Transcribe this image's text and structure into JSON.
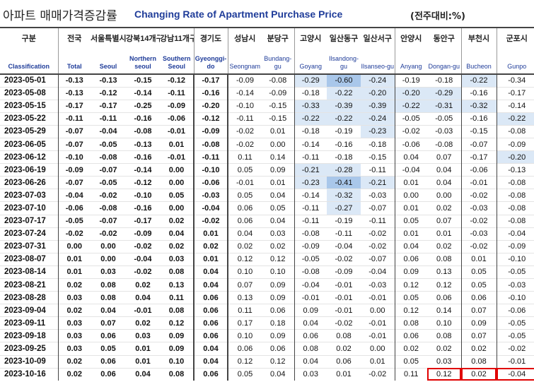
{
  "title": {
    "ko": "아파트 매매가격증감률",
    "en": "Changing Rate of Apartment Purchase Price",
    "unit": "(전주대비:%)"
  },
  "colors": {
    "title_en": "#1f3c99",
    "highlight_light": "#dbe8f6",
    "highlight_dark": "#a9c7ea",
    "box": "#e00000"
  },
  "chart_data": {
    "type": "table",
    "columns": [
      {
        "ko": "구분",
        "en": "Classification"
      },
      {
        "ko": "전국",
        "en": "Total"
      },
      {
        "ko": "서울특별시",
        "en": "Seoul"
      },
      {
        "ko": "강북14개구",
        "en": "Northern seoul"
      },
      {
        "ko": "강남11개구",
        "en": "Southern Seoul"
      },
      {
        "ko": "경기도",
        "en": "Gyeonggi-do"
      },
      {
        "ko": "성남시",
        "en": "Seongnam"
      },
      {
        "ko": "분당구",
        "en": "Bundang-gu"
      },
      {
        "ko": "고양시",
        "en": "Goyang"
      },
      {
        "ko": "일산동구",
        "en": "Ilsandong-gu"
      },
      {
        "ko": "일산서구",
        "en": "Ilsanseo-gu"
      },
      {
        "ko": "안양시",
        "en": "Anyang"
      },
      {
        "ko": "동안구",
        "en": "Dongan-gu"
      },
      {
        "ko": "부천시",
        "en": "Bucheon"
      },
      {
        "ko": "군포시",
        "en": "Gunpo"
      }
    ],
    "rows": [
      [
        "2023-05-01",
        "-0.13",
        "-0.13",
        "-0.15",
        "-0.12",
        "-0.17",
        "-0.09",
        "-0.08",
        "-0.29",
        "-0.60",
        "-0.24",
        "-0.19",
        "-0.18",
        "-0.22",
        "-0.34"
      ],
      [
        "2023-05-08",
        "-0.13",
        "-0.12",
        "-0.14",
        "-0.11",
        "-0.16",
        "-0.14",
        "-0.09",
        "-0.18",
        "-0.22",
        "-0.20",
        "-0.20",
        "-0.29",
        "-0.16",
        "-0.17"
      ],
      [
        "2023-05-15",
        "-0.17",
        "-0.17",
        "-0.25",
        "-0.09",
        "-0.20",
        "-0.10",
        "-0.15",
        "-0.33",
        "-0.39",
        "-0.39",
        "-0.22",
        "-0.31",
        "-0.32",
        "-0.14"
      ],
      [
        "2023-05-22",
        "-0.11",
        "-0.11",
        "-0.16",
        "-0.06",
        "-0.12",
        "-0.11",
        "-0.15",
        "-0.22",
        "-0.22",
        "-0.24",
        "-0.05",
        "-0.05",
        "-0.16",
        "-0.22"
      ],
      [
        "2023-05-29",
        "-0.07",
        "-0.04",
        "-0.08",
        "-0.01",
        "-0.09",
        "-0.02",
        "0.01",
        "-0.18",
        "-0.19",
        "-0.23",
        "-0.02",
        "-0.03",
        "-0.15",
        "-0.08"
      ],
      [
        "2023-06-05",
        "-0.07",
        "-0.05",
        "-0.13",
        "0.01",
        "-0.08",
        "-0.02",
        "0.00",
        "-0.14",
        "-0.16",
        "-0.18",
        "-0.06",
        "-0.08",
        "-0.07",
        "-0.09"
      ],
      [
        "2023-06-12",
        "-0.10",
        "-0.08",
        "-0.16",
        "-0.01",
        "-0.11",
        "0.11",
        "0.14",
        "-0.11",
        "-0.18",
        "-0.15",
        "0.04",
        "0.07",
        "-0.17",
        "-0.20"
      ],
      [
        "2023-06-19",
        "-0.09",
        "-0.07",
        "-0.14",
        "0.00",
        "-0.10",
        "0.05",
        "0.09",
        "-0.21",
        "-0.28",
        "-0.11",
        "-0.04",
        "0.04",
        "-0.06",
        "-0.13"
      ],
      [
        "2023-06-26",
        "-0.07",
        "-0.05",
        "-0.12",
        "0.00",
        "-0.06",
        "-0.01",
        "0.01",
        "-0.23",
        "-0.41",
        "-0.21",
        "0.01",
        "0.04",
        "-0.01",
        "-0.08"
      ],
      [
        "2023-07-03",
        "-0.04",
        "-0.02",
        "-0.10",
        "0.05",
        "-0.03",
        "0.05",
        "0.04",
        "-0.14",
        "-0.32",
        "-0.03",
        "0.00",
        "0.00",
        "-0.02",
        "-0.08"
      ],
      [
        "2023-07-10",
        "-0.06",
        "-0.08",
        "-0.16",
        "0.00",
        "-0.04",
        "0.06",
        "0.05",
        "-0.11",
        "-0.27",
        "-0.07",
        "0.01",
        "0.02",
        "-0.03",
        "-0.08"
      ],
      [
        "2023-07-17",
        "-0.05",
        "-0.07",
        "-0.17",
        "0.02",
        "-0.02",
        "0.06",
        "0.04",
        "-0.11",
        "-0.19",
        "-0.11",
        "0.05",
        "0.07",
        "-0.02",
        "-0.08"
      ],
      [
        "2023-07-24",
        "-0.02",
        "-0.02",
        "-0.09",
        "0.04",
        "0.01",
        "0.04",
        "0.03",
        "-0.08",
        "-0.11",
        "-0.02",
        "0.01",
        "0.01",
        "-0.03",
        "-0.04"
      ],
      [
        "2023-07-31",
        "0.00",
        "0.00",
        "-0.02",
        "0.02",
        "0.02",
        "0.02",
        "0.02",
        "-0.09",
        "-0.04",
        "-0.02",
        "0.04",
        "0.02",
        "-0.02",
        "-0.09"
      ],
      [
        "2023-08-07",
        "0.01",
        "0.00",
        "-0.04",
        "0.03",
        "0.01",
        "0.12",
        "0.12",
        "-0.05",
        "-0.02",
        "-0.07",
        "0.06",
        "0.08",
        "0.01",
        "-0.10"
      ],
      [
        "2023-08-14",
        "0.01",
        "0.03",
        "-0.02",
        "0.08",
        "0.04",
        "0.10",
        "0.10",
        "-0.08",
        "-0.09",
        "-0.04",
        "0.09",
        "0.13",
        "0.05",
        "-0.05"
      ],
      [
        "2023-08-21",
        "0.02",
        "0.08",
        "0.02",
        "0.13",
        "0.04",
        "0.07",
        "0.09",
        "-0.04",
        "-0.01",
        "-0.03",
        "0.12",
        "0.12",
        "0.05",
        "-0.03"
      ],
      [
        "2023-08-28",
        "0.03",
        "0.08",
        "0.04",
        "0.11",
        "0.06",
        "0.13",
        "0.09",
        "-0.01",
        "-0.01",
        "-0.01",
        "0.05",
        "0.06",
        "0.06",
        "-0.10"
      ],
      [
        "2023-09-04",
        "0.02",
        "0.04",
        "-0.01",
        "0.08",
        "0.06",
        "0.11",
        "0.06",
        "0.09",
        "-0.01",
        "0.00",
        "0.12",
        "0.14",
        "0.07",
        "-0.06"
      ],
      [
        "2023-09-11",
        "0.03",
        "0.07",
        "0.02",
        "0.12",
        "0.06",
        "0.17",
        "0.18",
        "0.04",
        "-0.02",
        "-0.01",
        "0.08",
        "0.10",
        "0.09",
        "-0.05"
      ],
      [
        "2023-09-18",
        "0.03",
        "0.06",
        "0.03",
        "0.09",
        "0.06",
        "0.10",
        "0.09",
        "0.06",
        "0.08",
        "-0.01",
        "0.06",
        "0.08",
        "0.07",
        "-0.05"
      ],
      [
        "2023-09-25",
        "0.03",
        "0.05",
        "0.01",
        "0.09",
        "0.04",
        "0.06",
        "0.06",
        "0.08",
        "0.02",
        "0.00",
        "0.02",
        "0.02",
        "0.02",
        "-0.02"
      ],
      [
        "2023-10-09",
        "0.02",
        "0.06",
        "0.01",
        "0.10",
        "0.04",
        "0.12",
        "0.12",
        "0.04",
        "0.06",
        "0.01",
        "0.05",
        "0.03",
        "0.08",
        "-0.01"
      ],
      [
        "2023-10-16",
        "0.02",
        "0.06",
        "0.04",
        "0.08",
        "0.06",
        "0.05",
        "0.04",
        "0.03",
        "0.01",
        "-0.02",
        "0.11",
        "0.12",
        "0.02",
        "-0.04"
      ]
    ],
    "highlighted_cells": {
      "dark": [
        [
          0,
          9
        ],
        [
          8,
          9
        ]
      ],
      "light": [
        [
          0,
          8
        ],
        [
          0,
          10
        ],
        [
          0,
          13
        ],
        [
          1,
          9
        ],
        [
          1,
          10
        ],
        [
          1,
          11
        ],
        [
          1,
          12
        ],
        [
          2,
          8
        ],
        [
          2,
          9
        ],
        [
          2,
          10
        ],
        [
          2,
          11
        ],
        [
          2,
          12
        ],
        [
          2,
          13
        ],
        [
          3,
          8
        ],
        [
          3,
          9
        ],
        [
          3,
          10
        ],
        [
          3,
          14
        ],
        [
          4,
          10
        ],
        [
          6,
          14
        ],
        [
          7,
          8
        ],
        [
          7,
          9
        ],
        [
          8,
          8
        ],
        [
          8,
          10
        ],
        [
          9,
          9
        ],
        [
          10,
          9
        ]
      ]
    },
    "boxed_cells": [
      [
        23,
        12
      ],
      [
        23,
        13
      ],
      [
        23,
        14
      ]
    ]
  }
}
